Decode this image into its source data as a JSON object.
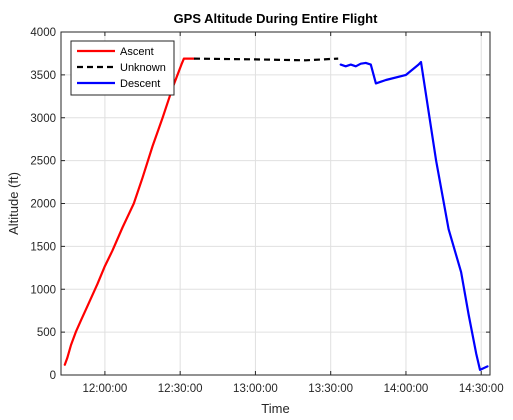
{
  "chart_data": {
    "type": "line",
    "title": "GPS Altitude During Entire Flight",
    "xlabel": "Time",
    "ylabel": "Altitude (ft)",
    "x_unit": "time of day",
    "xlim": [
      "11:42:30",
      "14:33:30"
    ],
    "ylim": [
      0,
      4000
    ],
    "xticks": [
      "12:00:00",
      "12:30:00",
      "13:00:00",
      "13:30:00",
      "14:00:00",
      "14:30:00"
    ],
    "yticks": [
      0,
      500,
      1000,
      1500,
      2000,
      2500,
      3000,
      3500,
      4000
    ],
    "grid": true,
    "legend_position": "top-left",
    "series": [
      {
        "name": "Ascent",
        "color": "#ff0000",
        "style": "solid",
        "points": [
          [
            "11:44:00",
            120
          ],
          [
            "11:45:00",
            200
          ],
          [
            "11:46:30",
            350
          ],
          [
            "11:48:30",
            510
          ],
          [
            "11:50:30",
            640
          ],
          [
            "11:53:00",
            800
          ],
          [
            "11:57:00",
            1060
          ],
          [
            "12:00:00",
            1270
          ],
          [
            "12:03:00",
            1450
          ],
          [
            "12:07:00",
            1720
          ],
          [
            "12:11:30",
            2000
          ],
          [
            "12:15:00",
            2300
          ],
          [
            "12:19:00",
            2670
          ],
          [
            "12:23:00",
            3000
          ],
          [
            "12:27:00",
            3350
          ],
          [
            "12:30:30",
            3620
          ],
          [
            "12:31:30",
            3690
          ],
          [
            "12:35:30",
            3690
          ]
        ]
      },
      {
        "name": "Unknown",
        "color": "#000000",
        "style": "dashed",
        "points": [
          [
            "12:35:30",
            3690
          ],
          [
            "13:00:00",
            3680
          ],
          [
            "13:20:00",
            3670
          ],
          [
            "13:33:00",
            3690
          ]
        ]
      },
      {
        "name": "Descent",
        "color": "#0000ff",
        "style": "solid",
        "points": [
          [
            "13:34:00",
            3620
          ],
          [
            "13:36:00",
            3600
          ],
          [
            "13:38:00",
            3620
          ],
          [
            "13:40:00",
            3600
          ],
          [
            "13:42:00",
            3630
          ],
          [
            "13:44:00",
            3640
          ],
          [
            "13:46:00",
            3620
          ],
          [
            "13:48:00",
            3400
          ],
          [
            "13:52:00",
            3440
          ],
          [
            "14:00:00",
            3500
          ],
          [
            "14:05:00",
            3620
          ],
          [
            "14:06:00",
            3650
          ],
          [
            "14:12:00",
            2500
          ],
          [
            "14:17:00",
            1700
          ],
          [
            "14:22:00",
            1200
          ],
          [
            "14:25:00",
            700
          ],
          [
            "14:28:00",
            250
          ],
          [
            "14:29:30",
            60
          ],
          [
            "14:31:00",
            80
          ],
          [
            "14:32:30",
            100
          ]
        ]
      }
    ]
  }
}
